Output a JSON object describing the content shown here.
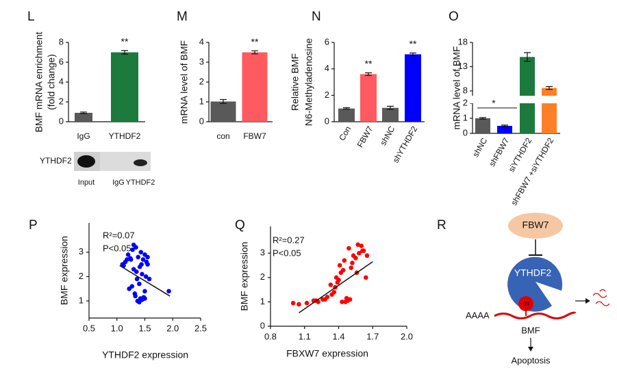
{
  "chart_data": [
    {
      "type": "bar",
      "panel": "L",
      "ylabel": [
        "BMF mRNA enrichment",
        "(fold change)"
      ],
      "categories": [
        "IgG",
        "YTHDF2"
      ],
      "values": [
        0.9,
        7.0
      ],
      "errors": [
        0.08,
        0.18
      ],
      "colors": [
        "#595959",
        "#1b7a3c"
      ],
      "significance": [
        null,
        "**"
      ],
      "ylim": [
        0,
        8
      ],
      "yticks": [
        0,
        2,
        4,
        6,
        8
      ],
      "blot": {
        "label": "YTHDF2",
        "lanes": [
          "Input",
          "IgG",
          "YTHDF2"
        ]
      }
    },
    {
      "type": "bar",
      "panel": "M",
      "ylabel": [
        "mRNA  level of  BMF"
      ],
      "categories": [
        "con",
        "FBW7"
      ],
      "values": [
        1.02,
        3.5
      ],
      "errors": [
        0.1,
        0.08
      ],
      "colors": [
        "#595959",
        "#ff5a5f"
      ],
      "significance": [
        null,
        "**"
      ],
      "ylim": [
        0,
        4
      ],
      "yticks": [
        0,
        1,
        2,
        3,
        4
      ]
    },
    {
      "type": "bar",
      "panel": "N",
      "ylabel": [
        "Relative  BMF",
        "N6-Methyladenosine"
      ],
      "categories": [
        "Con",
        "FBW7",
        "shNC",
        "shYTHDF2"
      ],
      "values": [
        1.0,
        3.6,
        1.05,
        5.1
      ],
      "errors": [
        0.06,
        0.1,
        0.12,
        0.1
      ],
      "colors": [
        "#595959",
        "#ff5a5f",
        "#595959",
        "#0000ff"
      ],
      "significance": [
        null,
        "**",
        null,
        "**"
      ],
      "ylim": [
        0,
        6
      ],
      "yticks": [
        0,
        2,
        4,
        6
      ]
    },
    {
      "type": "bar",
      "panel": "O",
      "ylabel": [
        "mRNA  level of  BMF"
      ],
      "categories": [
        "shNC",
        "shFBW7",
        "siYTHDF2",
        "shFBW7 +siYTHDF2"
      ],
      "values": [
        1.0,
        0.5,
        15.0,
        8.6
      ],
      "errors": [
        0.05,
        0.05,
        0.9,
        0.3
      ],
      "colors": [
        "#595959",
        "#0000ff",
        "#1b7a3c",
        "#ff7f27"
      ],
      "comparison": {
        "label": "*",
        "categories": [
          "shNC",
          "shFBW7"
        ]
      },
      "ylim": [
        0,
        18
      ],
      "ybreak": [
        2,
        7
      ],
      "yticks": [
        0,
        1,
        2,
        8,
        13,
        18
      ]
    },
    {
      "type": "scatter",
      "panel": "P",
      "xlabel": "YTHDF2 expression",
      "ylabel": "BMF expression",
      "color": "#0000ff",
      "stats": [
        "R²=0.07",
        "P<0.05"
      ],
      "x": [
        1.1,
        1.15,
        1.2,
        1.22,
        1.25,
        1.28,
        1.3,
        1.32,
        1.35,
        1.37,
        1.4,
        1.42,
        1.45,
        1.48,
        1.5,
        1.52,
        1.55,
        1.58,
        1.18,
        1.24,
        1.3,
        1.34,
        1.38,
        1.41,
        1.44,
        1.47,
        1.5,
        1.53,
        1.36,
        1.4,
        1.45,
        1.5,
        1.55,
        1.93,
        1.12,
        1.27,
        1.33,
        1.43
      ],
      "y": [
        2.5,
        2.6,
        2.9,
        1.5,
        2.7,
        3.1,
        2.3,
        1.3,
        2.2,
        1.0,
        0.95,
        1.1,
        1.05,
        1.15,
        1.1,
        2.0,
        2.5,
        1.9,
        2.7,
        2.75,
        3.3,
        3.2,
        2.8,
        2.4,
        2.5,
        2.7,
        2.9,
        2.6,
        1.9,
        1.7,
        2.1,
        1.4,
        2.8,
        1.4,
        2.45,
        1.6,
        1.2,
        3.0
      ],
      "fit": {
        "x": [
          1.05,
          1.95
        ],
        "y": [
          2.45,
          1.2
        ]
      },
      "xlim": [
        0.5,
        2.5
      ],
      "xticks": [
        0.5,
        {
          "value": 1,
          "label": "1.0"
        },
        1.5,
        {
          "value": 2,
          "label": "2.0"
        },
        2.5
      ],
      "ylim": [
        0.3,
        4.2
      ],
      "yticks": [
        1,
        2,
        3
      ]
    },
    {
      "type": "scatter",
      "panel": "Q",
      "xlabel": "FBXW7 expression",
      "ylabel": "BMF expression",
      "color": "#ff0000",
      "stats": [
        "R²=0.27",
        "P<0.05"
      ],
      "x": [
        1.0,
        1.05,
        1.12,
        1.18,
        1.22,
        1.26,
        1.3,
        1.34,
        1.37,
        1.4,
        1.42,
        1.44,
        1.46,
        1.48,
        1.5,
        1.52,
        1.55,
        1.58,
        1.6,
        1.62,
        1.65,
        1.38,
        1.41,
        1.45,
        1.49,
        1.53,
        1.57,
        1.61,
        1.43,
        1.47,
        1.51,
        1.36,
        1.39,
        1.56,
        1.64,
        1.2,
        1.28,
        1.33
      ],
      "y": [
        0.95,
        0.9,
        0.95,
        1.05,
        1.0,
        1.1,
        1.2,
        1.3,
        1.6,
        1.9,
        2.2,
        2.3,
        1.0,
        1.05,
        1.1,
        2.6,
        2.8,
        3.0,
        3.3,
        3.1,
        2.9,
        2.0,
        2.5,
        2.7,
        3.2,
        2.9,
        3.35,
        3.1,
        1.0,
        1.15,
        2.4,
        1.4,
        1.8,
        2.2,
        2.0,
        1.05,
        1.1,
        1.7
      ],
      "fit": {
        "x": [
          1.05,
          1.7
        ],
        "y": [
          0.55,
          2.65
        ]
      },
      "xlim": [
        0.8,
        2.0
      ],
      "xticks": [
        0.8,
        1.1,
        1.4,
        1.7,
        {
          "value": 2,
          "label": "2.0"
        }
      ],
      "ylim": [
        0,
        4.1
      ],
      "yticks": [
        0,
        1,
        2,
        3
      ]
    }
  ],
  "diagram": {
    "panel": "R",
    "upstream": "FBW7",
    "reader": "YTHDF2",
    "mark": "m",
    "tail": "AAAA",
    "transcript": "BMF",
    "outcome": "Apoptosis"
  }
}
